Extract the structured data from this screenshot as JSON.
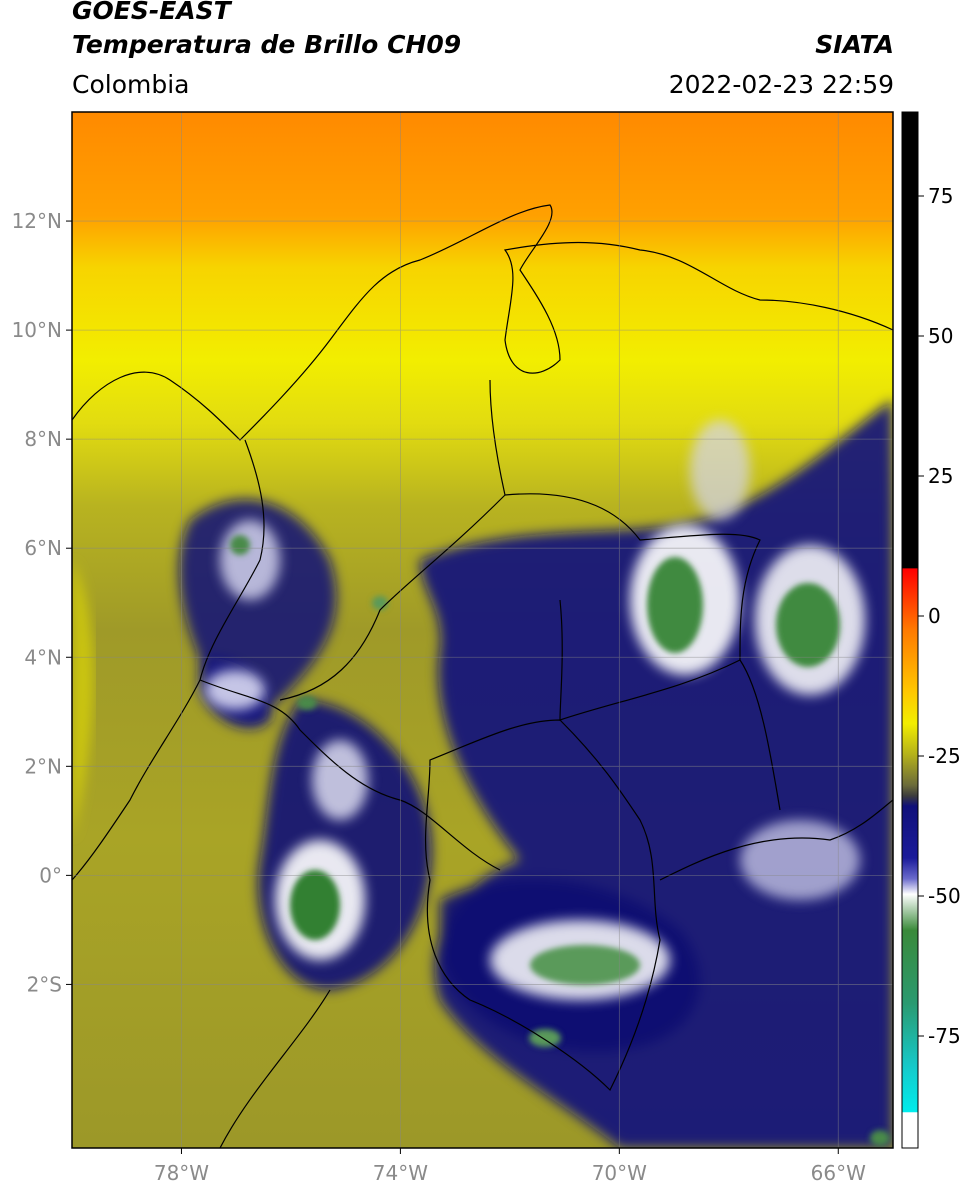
{
  "header": {
    "satellite": "GOES-EAST",
    "product": "Temperatura de Brillo CH09",
    "region": "Colombia",
    "source": "SIATA",
    "datetime": "2022-02-23 22:59"
  },
  "map": {
    "lon_range": [
      -80,
      -65
    ],
    "lat_range": [
      -5,
      14
    ],
    "lon_ticks": [
      {
        "value": -78,
        "label": "78°W"
      },
      {
        "value": -74,
        "label": "74°W"
      },
      {
        "value": -70,
        "label": "70°W"
      },
      {
        "value": -66,
        "label": "66°W"
      }
    ],
    "lat_ticks": [
      {
        "value": 12,
        "label": "12°N"
      },
      {
        "value": 10,
        "label": "10°N"
      },
      {
        "value": 8,
        "label": "8°N"
      },
      {
        "value": 6,
        "label": "6°N"
      },
      {
        "value": 4,
        "label": "4°N"
      },
      {
        "value": 2,
        "label": "2°N"
      },
      {
        "value": 0,
        "label": "0°"
      },
      {
        "value": -2,
        "label": "2°S"
      }
    ],
    "gridlines": true
  },
  "colorbar": {
    "range": [
      -95,
      90
    ],
    "ticks": [
      {
        "value": 75,
        "label": "75"
      },
      {
        "value": 50,
        "label": "50"
      },
      {
        "value": 25,
        "label": "25"
      },
      {
        "value": 0,
        "label": "0"
      },
      {
        "value": -25,
        "label": "-25"
      },
      {
        "value": -50,
        "label": "-50"
      },
      {
        "value": -75,
        "label": "-75"
      }
    ],
    "colors": {
      "black": "#000000",
      "red": "#ff1a00",
      "orange": "#ff9a00",
      "yellow": "#f2ee00",
      "olive": "#9a9a2a",
      "gray": "#4a4a44",
      "navy": "#0a0a7a",
      "white": "#ffffff",
      "green": "#2e8a2e",
      "cyan": "#00dddd"
    }
  }
}
